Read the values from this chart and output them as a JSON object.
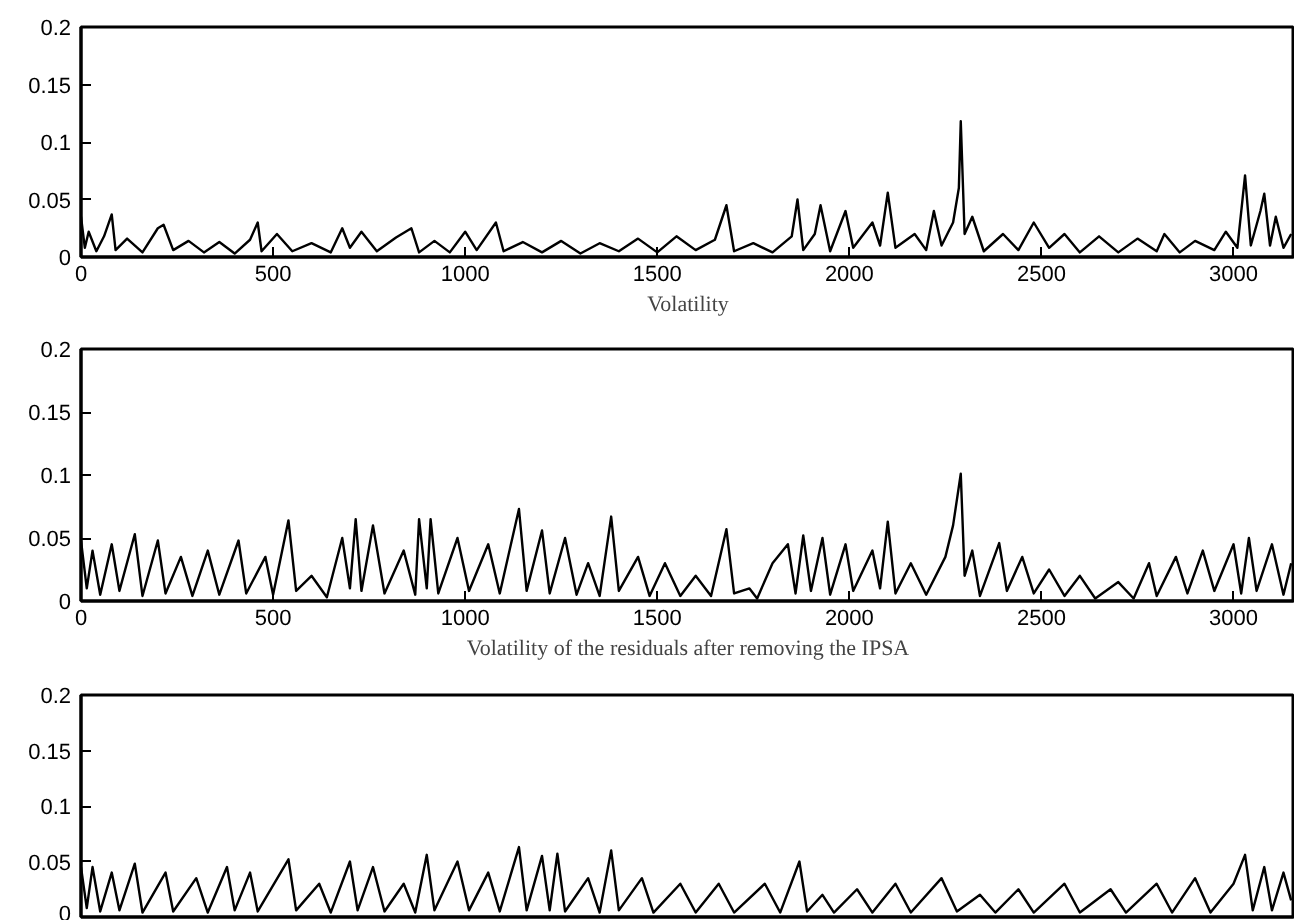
{
  "chart_data": [
    {
      "type": "line",
      "xlabel": "Volatility",
      "color": "#000000",
      "xlim": [
        0,
        3160
      ],
      "ylim": [
        0,
        0.2
      ],
      "xticks": [
        0,
        500,
        1000,
        1500,
        2000,
        2500,
        3000
      ],
      "yticks": [
        0,
        0.05,
        0.1,
        0.15,
        0.2
      ],
      "x": [
        0,
        10,
        20,
        40,
        60,
        80,
        90,
        120,
        160,
        200,
        215,
        240,
        280,
        320,
        360,
        400,
        440,
        460,
        470,
        510,
        550,
        600,
        650,
        680,
        700,
        730,
        770,
        820,
        860,
        880,
        920,
        960,
        1000,
        1030,
        1080,
        1100,
        1150,
        1200,
        1250,
        1300,
        1350,
        1400,
        1450,
        1500,
        1550,
        1600,
        1650,
        1680,
        1700,
        1750,
        1800,
        1850,
        1865,
        1880,
        1910,
        1925,
        1950,
        1990,
        2010,
        2060,
        2080,
        2100,
        2120,
        2170,
        2200,
        2220,
        2240,
        2270,
        2285,
        2290,
        2300,
        2320,
        2350,
        2400,
        2440,
        2480,
        2520,
        2560,
        2600,
        2650,
        2700,
        2750,
        2800,
        2820,
        2860,
        2900,
        2950,
        2980,
        3010,
        3030,
        3045,
        3070,
        3080,
        3095,
        3110,
        3130,
        3150
      ],
      "values": [
        0.035,
        0.008,
        0.022,
        0.005,
        0.018,
        0.037,
        0.006,
        0.016,
        0.004,
        0.025,
        0.028,
        0.006,
        0.014,
        0.004,
        0.013,
        0.003,
        0.015,
        0.03,
        0.005,
        0.02,
        0.005,
        0.012,
        0.004,
        0.025,
        0.008,
        0.022,
        0.005,
        0.017,
        0.025,
        0.004,
        0.014,
        0.004,
        0.022,
        0.006,
        0.03,
        0.005,
        0.013,
        0.004,
        0.014,
        0.003,
        0.012,
        0.005,
        0.016,
        0.004,
        0.018,
        0.006,
        0.015,
        0.045,
        0.005,
        0.012,
        0.004,
        0.018,
        0.05,
        0.006,
        0.02,
        0.045,
        0.005,
        0.04,
        0.008,
        0.03,
        0.01,
        0.056,
        0.008,
        0.02,
        0.006,
        0.04,
        0.01,
        0.03,
        0.06,
        0.118,
        0.02,
        0.035,
        0.005,
        0.02,
        0.006,
        0.03,
        0.008,
        0.02,
        0.004,
        0.018,
        0.004,
        0.016,
        0.005,
        0.02,
        0.004,
        0.014,
        0.006,
        0.022,
        0.008,
        0.071,
        0.01,
        0.04,
        0.055,
        0.01,
        0.035,
        0.008,
        0.02
      ]
    },
    {
      "type": "line",
      "xlabel": "Volatility of the residuals after removing the IPSA",
      "color": "#000000",
      "xlim": [
        0,
        3160
      ],
      "ylim": [
        0,
        0.2
      ],
      "xticks": [
        0,
        500,
        1000,
        1500,
        2000,
        2500,
        3000
      ],
      "yticks": [
        0,
        0.05,
        0.1,
        0.15,
        0.2
      ],
      "x": [
        0,
        15,
        30,
        50,
        80,
        100,
        140,
        160,
        200,
        220,
        260,
        290,
        330,
        360,
        410,
        430,
        480,
        500,
        540,
        560,
        600,
        640,
        680,
        700,
        715,
        730,
        760,
        790,
        840,
        870,
        880,
        900,
        910,
        930,
        980,
        1010,
        1060,
        1090,
        1140,
        1160,
        1200,
        1220,
        1260,
        1290,
        1320,
        1350,
        1380,
        1400,
        1450,
        1480,
        1520,
        1560,
        1600,
        1640,
        1680,
        1700,
        1740,
        1760,
        1800,
        1840,
        1860,
        1880,
        1900,
        1930,
        1950,
        1990,
        2010,
        2060,
        2080,
        2100,
        2120,
        2160,
        2200,
        2250,
        2270,
        2290,
        2300,
        2320,
        2340,
        2390,
        2410,
        2450,
        2480,
        2520,
        2560,
        2600,
        2640,
        2700,
        2740,
        2780,
        2800,
        2850,
        2880,
        2920,
        2950,
        3000,
        3020,
        3040,
        3060,
        3100,
        3130,
        3150
      ],
      "values": [
        0.048,
        0.01,
        0.04,
        0.005,
        0.045,
        0.008,
        0.053,
        0.004,
        0.048,
        0.006,
        0.035,
        0.004,
        0.04,
        0.005,
        0.048,
        0.006,
        0.035,
        0.005,
        0.064,
        0.008,
        0.02,
        0.003,
        0.05,
        0.01,
        0.065,
        0.008,
        0.06,
        0.006,
        0.04,
        0.005,
        0.065,
        0.01,
        0.065,
        0.006,
        0.05,
        0.008,
        0.045,
        0.006,
        0.073,
        0.008,
        0.056,
        0.006,
        0.05,
        0.005,
        0.03,
        0.004,
        0.067,
        0.008,
        0.035,
        0.004,
        0.03,
        0.004,
        0.02,
        0.004,
        0.057,
        0.006,
        0.01,
        0.002,
        0.03,
        0.045,
        0.006,
        0.052,
        0.008,
        0.05,
        0.005,
        0.045,
        0.008,
        0.04,
        0.01,
        0.063,
        0.006,
        0.03,
        0.005,
        0.035,
        0.06,
        0.101,
        0.02,
        0.04,
        0.004,
        0.046,
        0.008,
        0.035,
        0.006,
        0.025,
        0.004,
        0.02,
        0.002,
        0.015,
        0.002,
        0.03,
        0.004,
        0.035,
        0.006,
        0.04,
        0.008,
        0.045,
        0.006,
        0.05,
        0.008,
        0.045,
        0.005,
        0.03
      ]
    },
    {
      "type": "line",
      "color": "#000000",
      "xlim": [
        0,
        3160
      ],
      "ylim": [
        0,
        0.2
      ],
      "yticks": [
        0,
        0.05,
        0.1,
        0.15,
        0.2
      ],
      "tick_labels": "y",
      "x": [
        0,
        15,
        30,
        50,
        80,
        100,
        140,
        160,
        220,
        240,
        300,
        330,
        380,
        400,
        440,
        460,
        540,
        560,
        620,
        650,
        700,
        720,
        760,
        790,
        840,
        870,
        900,
        920,
        980,
        1010,
        1060,
        1090,
        1140,
        1160,
        1200,
        1220,
        1240,
        1260,
        1320,
        1350,
        1380,
        1400,
        1460,
        1490,
        1560,
        1600,
        1660,
        1700,
        1780,
        1820,
        1870,
        1890,
        1930,
        1960,
        2020,
        2060,
        2120,
        2160,
        2240,
        2280,
        2340,
        2380,
        2440,
        2480,
        2560,
        2600,
        2680,
        2720,
        2800,
        2840,
        2900,
        2940,
        3000,
        3030,
        3050,
        3080,
        3100,
        3130,
        3150
      ],
      "values": [
        0.045,
        0.008,
        0.045,
        0.005,
        0.04,
        0.006,
        0.048,
        0.004,
        0.04,
        0.005,
        0.035,
        0.004,
        0.045,
        0.006,
        0.04,
        0.005,
        0.052,
        0.006,
        0.03,
        0.004,
        0.05,
        0.006,
        0.045,
        0.005,
        0.03,
        0.004,
        0.056,
        0.006,
        0.05,
        0.006,
        0.04,
        0.005,
        0.063,
        0.006,
        0.055,
        0.006,
        0.057,
        0.005,
        0.035,
        0.004,
        0.06,
        0.006,
        0.035,
        0.004,
        0.03,
        0.004,
        0.03,
        0.004,
        0.03,
        0.004,
        0.05,
        0.005,
        0.02,
        0.004,
        0.025,
        0.004,
        0.03,
        0.004,
        0.035,
        0.005,
        0.02,
        0.004,
        0.025,
        0.004,
        0.03,
        0.004,
        0.025,
        0.004,
        0.03,
        0.004,
        0.035,
        0.004,
        0.03,
        0.056,
        0.006,
        0.045,
        0.006,
        0.04,
        0.015
      ]
    }
  ]
}
